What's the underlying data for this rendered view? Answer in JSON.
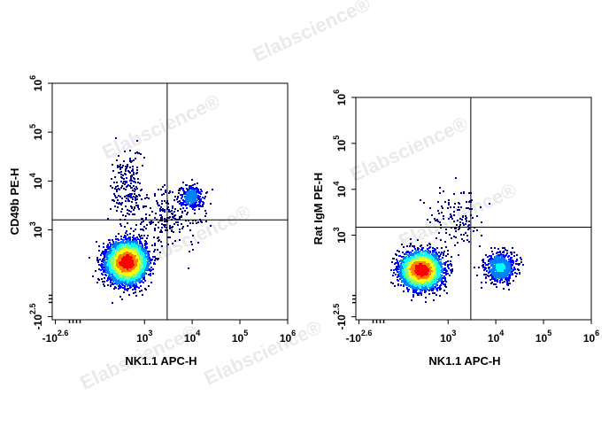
{
  "watermark": "Elabscience®",
  "chart_data": [
    {
      "type": "scatter",
      "subtype": "flow-cytometry-density-dot-plot",
      "xlabel": "NK1.1 APC-H",
      "ylabel": "CD49b PE-H",
      "x_scale": "biexponential",
      "y_scale": "biexponential",
      "x_ticks": [
        {
          "value": -398,
          "base": "-10",
          "exp": "2.6"
        },
        {
          "value": 1000,
          "base": "10",
          "exp": "3"
        },
        {
          "value": 10000,
          "base": "10",
          "exp": "4"
        },
        {
          "value": 100000,
          "base": "10",
          "exp": "5"
        },
        {
          "value": 1000000,
          "base": "10",
          "exp": "6"
        }
      ],
      "y_ticks": [
        {
          "value": -316,
          "base": "-10",
          "exp": "2.5"
        },
        {
          "value": 1000,
          "base": "10",
          "exp": "3"
        },
        {
          "value": 10000,
          "base": "10",
          "exp": "4"
        },
        {
          "value": 100000,
          "base": "10",
          "exp": "5"
        },
        {
          "value": 1000000,
          "base": "10",
          "exp": "6"
        }
      ],
      "gate": {
        "x": 3000,
        "y": 1600
      },
      "populations": [
        {
          "x": 400,
          "y": 200,
          "count": 5200,
          "spread_x": 1.0,
          "spread_y": 1.0
        },
        {
          "x": 9000,
          "y": 5000,
          "count": 300,
          "spread_x": 0.6,
          "spread_y": 0.6
        },
        {
          "x": 3000,
          "y": 2000,
          "count": 250,
          "spread_x": 2.2,
          "spread_y": 1.6
        },
        {
          "x": 400,
          "y": 8000,
          "count": 200,
          "spread_x": 0.8,
          "spread_y": 2.0
        }
      ],
      "colormap": [
        "#00008f",
        "#0000ff",
        "#0080ff",
        "#00ffff",
        "#80ff80",
        "#ffff00",
        "#ff8000",
        "#ff0000"
      ]
    },
    {
      "type": "scatter",
      "subtype": "flow-cytometry-density-dot-plot",
      "xlabel": "NK1.1 APC-H",
      "ylabel": "Rat IgM PE-H",
      "x_scale": "biexponential",
      "y_scale": "biexponential",
      "x_ticks": [
        {
          "value": -398,
          "base": "-10",
          "exp": "2.6"
        },
        {
          "value": 1000,
          "base": "10",
          "exp": "3"
        },
        {
          "value": 10000,
          "base": "10",
          "exp": "4"
        },
        {
          "value": 100000,
          "base": "10",
          "exp": "5"
        },
        {
          "value": 1000000,
          "base": "10",
          "exp": "6"
        }
      ],
      "y_ticks": [
        {
          "value": -316,
          "base": "-10",
          "exp": "2.5"
        },
        {
          "value": 1000,
          "base": "10",
          "exp": "3"
        },
        {
          "value": 10000,
          "base": "10",
          "exp": "4"
        },
        {
          "value": 100000,
          "base": "10",
          "exp": "5"
        },
        {
          "value": 1000000,
          "base": "10",
          "exp": "6"
        }
      ],
      "gate": {
        "x": 3000,
        "y": 1500
      },
      "populations": [
        {
          "x": 250,
          "y": 150,
          "count": 4800,
          "spread_x": 1.0,
          "spread_y": 0.9
        },
        {
          "x": 12000,
          "y": 180,
          "count": 700,
          "spread_x": 0.8,
          "spread_y": 0.8
        },
        {
          "x": 1500,
          "y": 2500,
          "count": 130,
          "spread_x": 1.5,
          "spread_y": 1.6
        }
      ],
      "colormap": [
        "#00008f",
        "#0000ff",
        "#0080ff",
        "#00ffff",
        "#80ff80",
        "#ffff00",
        "#ff8000",
        "#ff0000"
      ]
    }
  ]
}
